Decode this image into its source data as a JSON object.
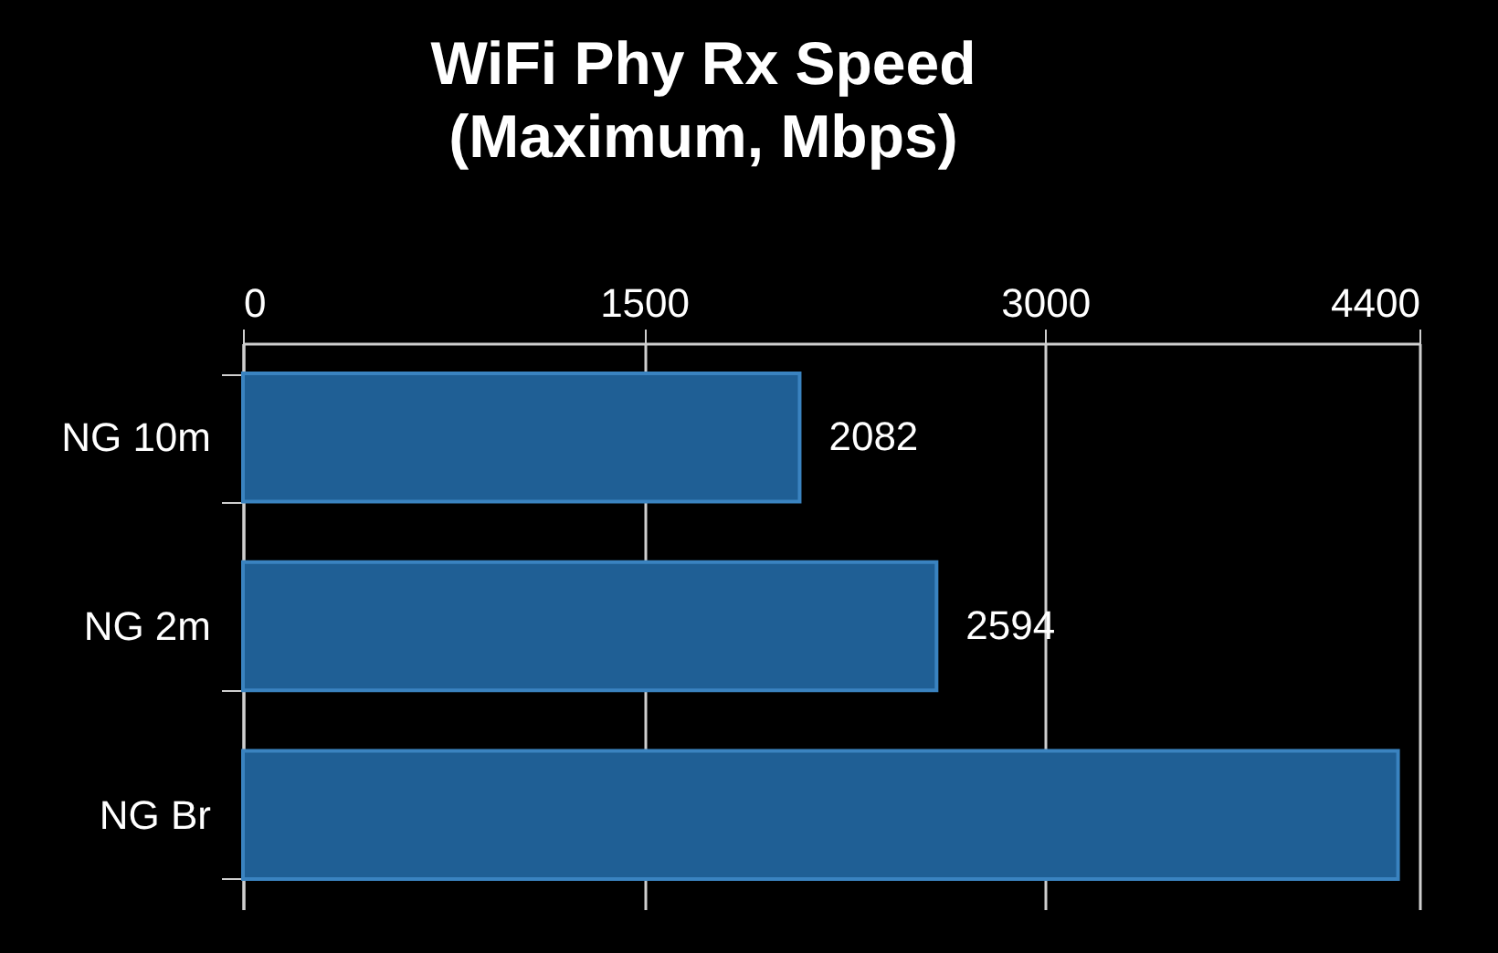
{
  "chart_data": {
    "type": "bar",
    "orientation": "horizontal",
    "title": "WiFi Phy Rx Speed\n(Maximum, Mbps)",
    "categories": [
      "NG 10m",
      "NG 2m",
      "NG Br"
    ],
    "values": [
      2082,
      2594,
      4320
    ],
    "value_labels": [
      "2082",
      "2594",
      null
    ],
    "color": "#1f5f95",
    "xlim": [
      0,
      4400
    ],
    "xticks": [
      0,
      1500,
      3000,
      4400
    ],
    "grid": "x"
  }
}
